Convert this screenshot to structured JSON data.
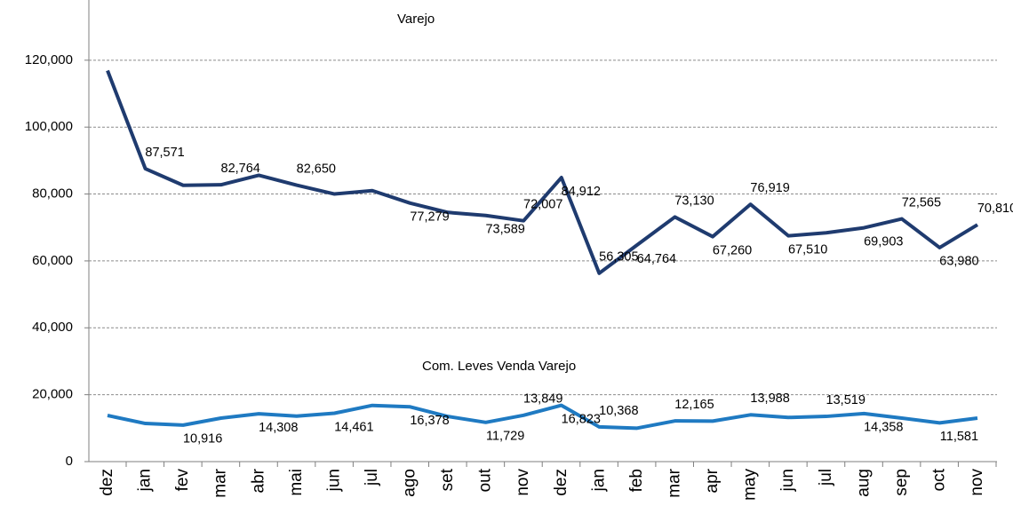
{
  "chart_data": {
    "type": "line",
    "categories": [
      "dez",
      "jan",
      "fev",
      "mar",
      "abr",
      "mai",
      "jun",
      "jul",
      "ago",
      "set",
      "out",
      "nov",
      "dez",
      "jan",
      "feb",
      "mar",
      "apr",
      "may",
      "jun",
      "jul",
      "aug",
      "sep",
      "oct",
      "nov"
    ],
    "series": [
      {
        "name": "Varejo",
        "color": "#1f3b6f",
        "values": [
          116900,
          87571,
          82600,
          82764,
          85600,
          82650,
          80000,
          81000,
          77279,
          74500,
          73589,
          72007,
          84912,
          56305,
          64764,
          73130,
          67260,
          76919,
          67510,
          68400,
          69903,
          72565,
          63980,
          70810
        ],
        "value_labels": [
          null,
          "87,571",
          null,
          "82,764",
          null,
          "82,650",
          null,
          null,
          "77,279",
          null,
          "73,589",
          "72,007",
          "84,912",
          "56,305",
          "64,764",
          "73,130",
          "67,260",
          "76,919",
          "67,510",
          null,
          "69,903",
          "72,565",
          "63,980",
          "70,810"
        ]
      },
      {
        "name": "Com. Leves Venda Varejo",
        "color": "#1f7ac2",
        "values": [
          13800,
          11400,
          10916,
          13000,
          14308,
          13600,
          14461,
          16800,
          16378,
          13500,
          11729,
          13849,
          16823,
          10368,
          10000,
          12165,
          12100,
          13988,
          13200,
          13519,
          14358,
          13000,
          11581,
          13000
        ],
        "value_labels": [
          null,
          null,
          "10,916",
          null,
          "14,308",
          null,
          "14,461",
          null,
          "16,378",
          null,
          "11,729",
          "13,849",
          "16,823",
          "10,368",
          null,
          "12,165",
          null,
          "13,988",
          null,
          "13,519",
          "14,358",
          null,
          "11,581",
          null
        ]
      }
    ],
    "ylim": [
      0,
      138000
    ],
    "yticks": [
      0,
      {
        "value": 20000,
        "label": "20,000"
      },
      {
        "value": 40000,
        "label": "40,000"
      },
      {
        "value": 60000,
        "label": "60,000"
      },
      {
        "value": 80000,
        "label": "80,000"
      },
      {
        "value": 100000,
        "label": "100,000"
      },
      {
        "value": 120000,
        "label": "120,000"
      }
    ],
    "grid": true
  }
}
